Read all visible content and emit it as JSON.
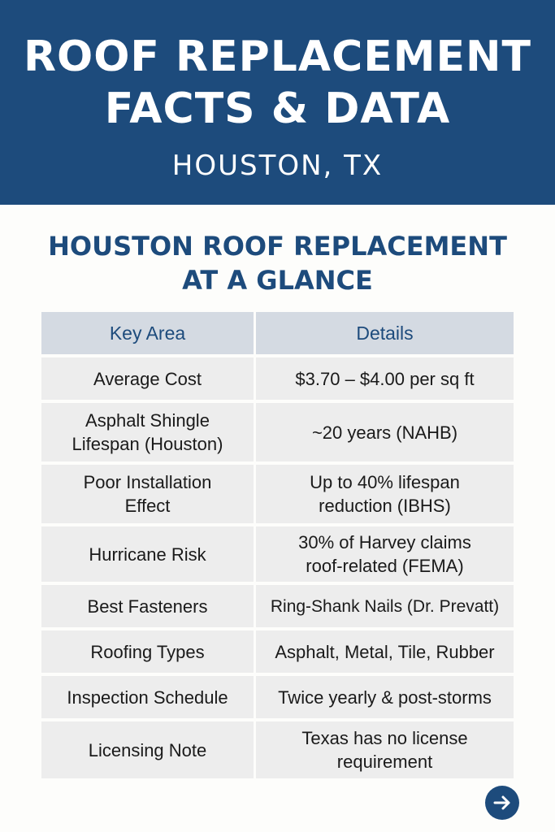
{
  "banner": {
    "title_line1": "ROOF REPLACEMENT",
    "title_line2": "FACTS & DATA",
    "subtitle": "HOUSTON, TX"
  },
  "section": {
    "heading_line1": "HOUSTON ROOF REPLACEMENT",
    "heading_line2": "AT A GLANCE"
  },
  "table": {
    "headers": [
      "Key Area",
      "Details"
    ],
    "rows": [
      {
        "key": [
          "Average Cost"
        ],
        "detail": [
          "$3.70 – $4.00 per sq ft"
        ]
      },
      {
        "key": [
          "Asphalt Shingle",
          "Lifespan (Houston)"
        ],
        "detail": [
          "~20 years (NAHB)"
        ]
      },
      {
        "key": [
          "Poor Installation",
          "Effect"
        ],
        "detail": [
          "Up to 40% lifespan",
          "reduction (IBHS)"
        ]
      },
      {
        "key": [
          "Hurricane Risk"
        ],
        "detail": [
          "30% of Harvey claims",
          "roof-related (FEMA)"
        ]
      },
      {
        "key": [
          "Best Fasteners"
        ],
        "detail": [
          "Ring-Shank Nails (Dr. Prevatt)"
        ]
      },
      {
        "key": [
          "Roofing Types"
        ],
        "detail": [
          "Asphalt, Metal, Tile, Rubber"
        ]
      },
      {
        "key": [
          "Inspection Schedule"
        ],
        "detail": [
          "Twice yearly & post-storms"
        ]
      },
      {
        "key": [
          "Licensing Note"
        ],
        "detail": [
          "Texas has no license",
          "requirement"
        ]
      }
    ]
  },
  "next_button": {
    "icon": "arrow-right-icon",
    "color": "#1d4b7c"
  },
  "colors": {
    "banner": "#1d4b7c",
    "header_row": "#d4dae2",
    "cell": "#ededed"
  }
}
